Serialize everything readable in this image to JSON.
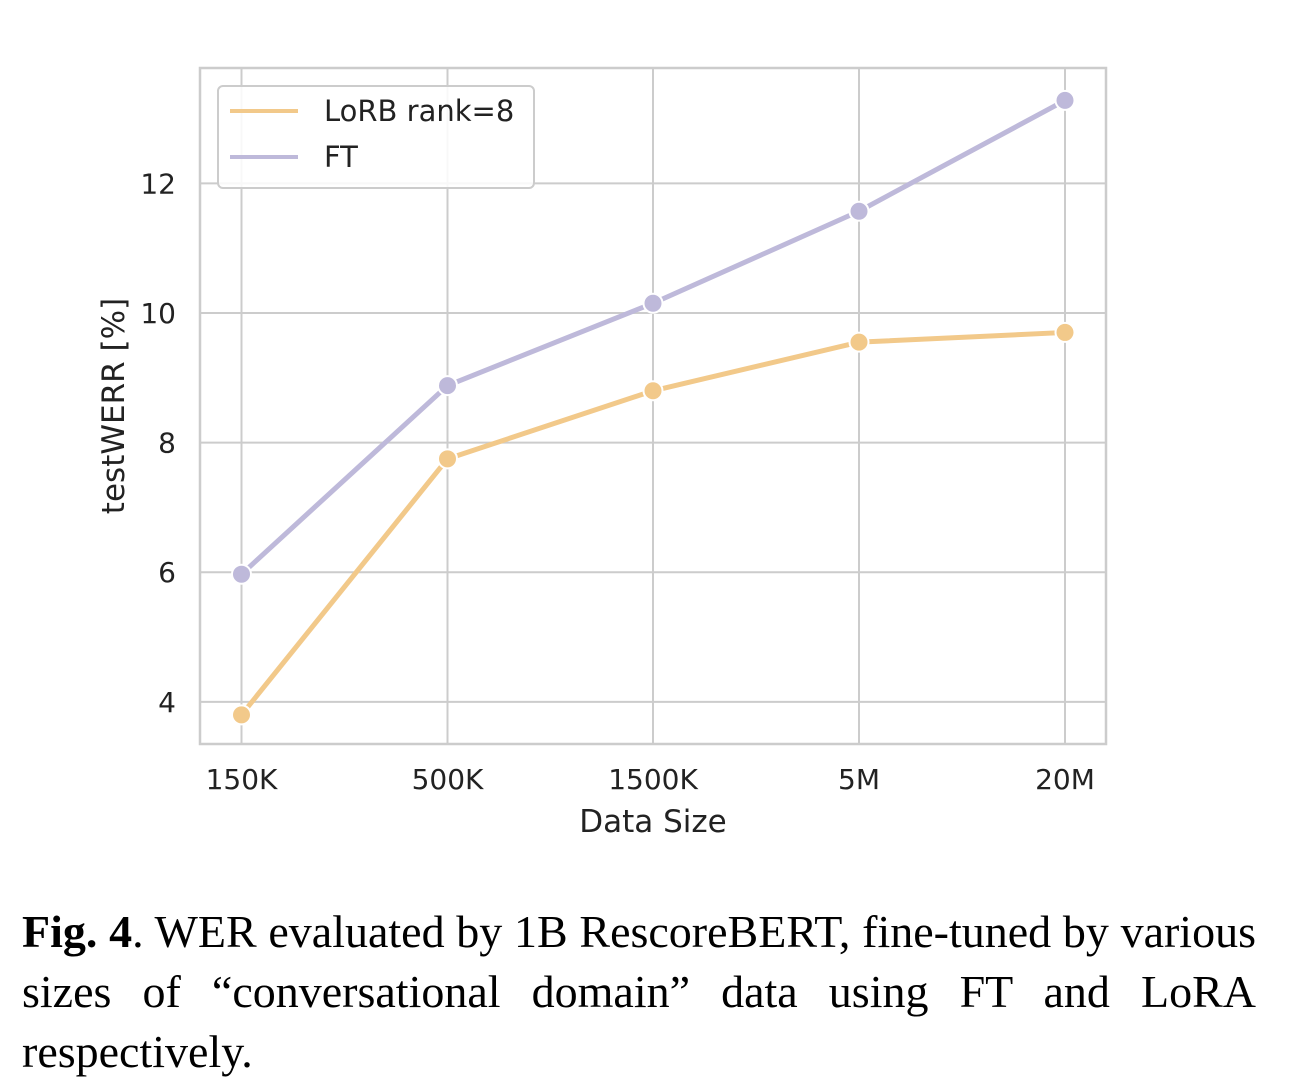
{
  "chart_data": {
    "type": "line",
    "categories": [
      "150K",
      "500K",
      "1500K",
      "5M",
      "20M"
    ],
    "series": [
      {
        "name": "LoRB rank=8",
        "color": "#f2c98a",
        "values": [
          3.8,
          7.75,
          8.8,
          9.55,
          9.7
        ]
      },
      {
        "name": "FT",
        "color": "#beb9da",
        "values": [
          5.97,
          8.88,
          10.15,
          11.57,
          13.28
        ]
      }
    ],
    "xlabel": "Data Size",
    "ylabel": "testWERR [%]",
    "ylim": [
      3.35,
      13.78
    ],
    "yticks": [
      4,
      6,
      8,
      10,
      12
    ],
    "grid": true,
    "legend": "top-left",
    "markers": true
  },
  "caption": {
    "label": "Fig. 4",
    "text": ".  WER evaluated by 1B RescoreBERT, fine-tuned by various sizes of “conversational domain” data using FT and LoRA respectively."
  }
}
